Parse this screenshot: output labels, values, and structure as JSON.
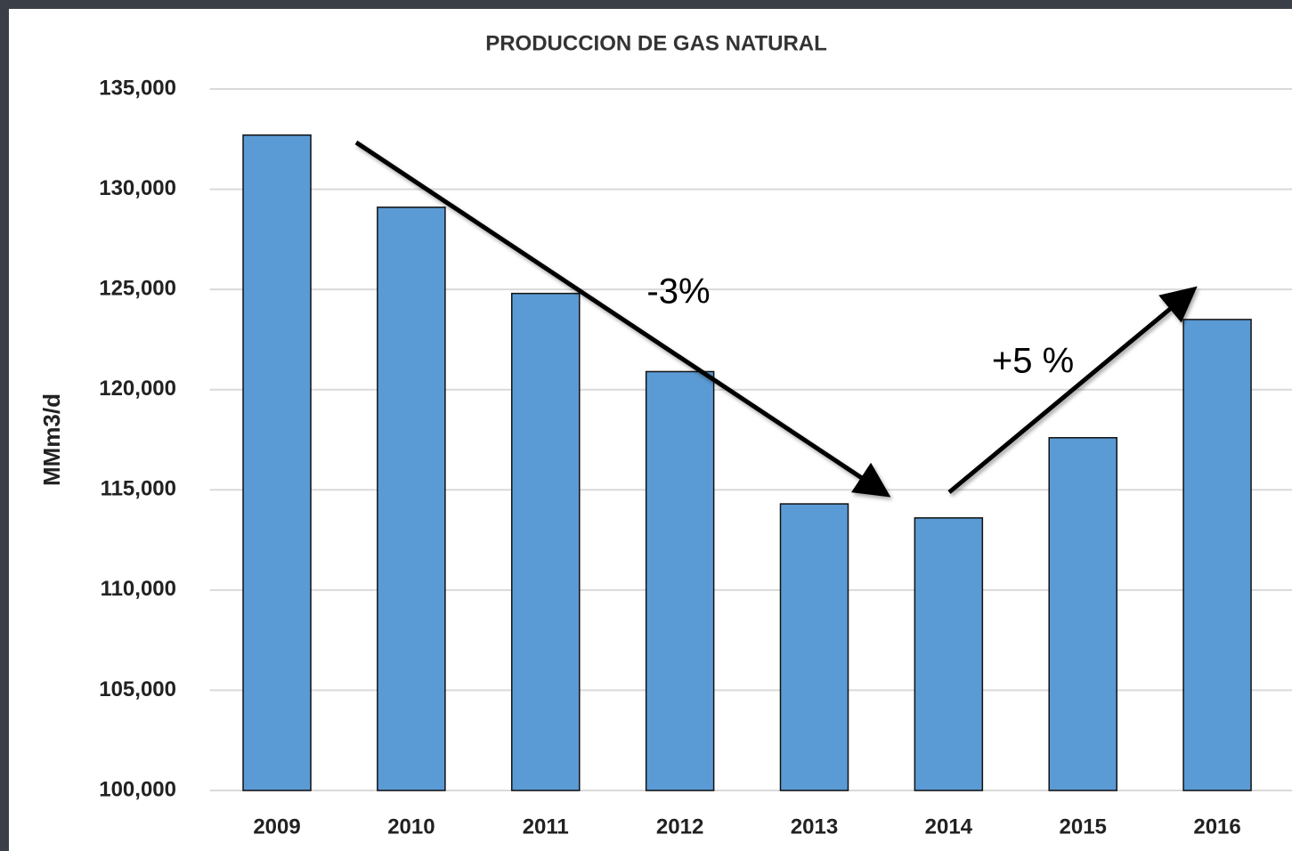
{
  "chart_data": {
    "type": "bar",
    "title": "PRODUCCION DE GAS NATURAL",
    "y_label": "MMm3/d",
    "categories": [
      "2009",
      "2010",
      "2011",
      "2012",
      "2013",
      "2014",
      "2015",
      "2016"
    ],
    "values": [
      132700,
      129100,
      124800,
      120900,
      114300,
      113600,
      117600,
      123500
    ],
    "color": "#5b9bd5",
    "ylim": [
      100000,
      135000
    ],
    "yticks": [
      {
        "value": 100000,
        "label": "100,000"
      },
      {
        "value": 105000,
        "label": "105,000"
      },
      {
        "value": 110000,
        "label": "110,000"
      },
      {
        "value": 115000,
        "label": "115,000"
      },
      {
        "value": 120000,
        "label": "120,000"
      },
      {
        "value": 125000,
        "label": "125,000"
      },
      {
        "value": 130000,
        "label": "130,000"
      },
      {
        "value": 135000,
        "label": "135,000"
      }
    ],
    "grid": true,
    "annotations": [
      "-3%",
      "+5 %"
    ]
  }
}
